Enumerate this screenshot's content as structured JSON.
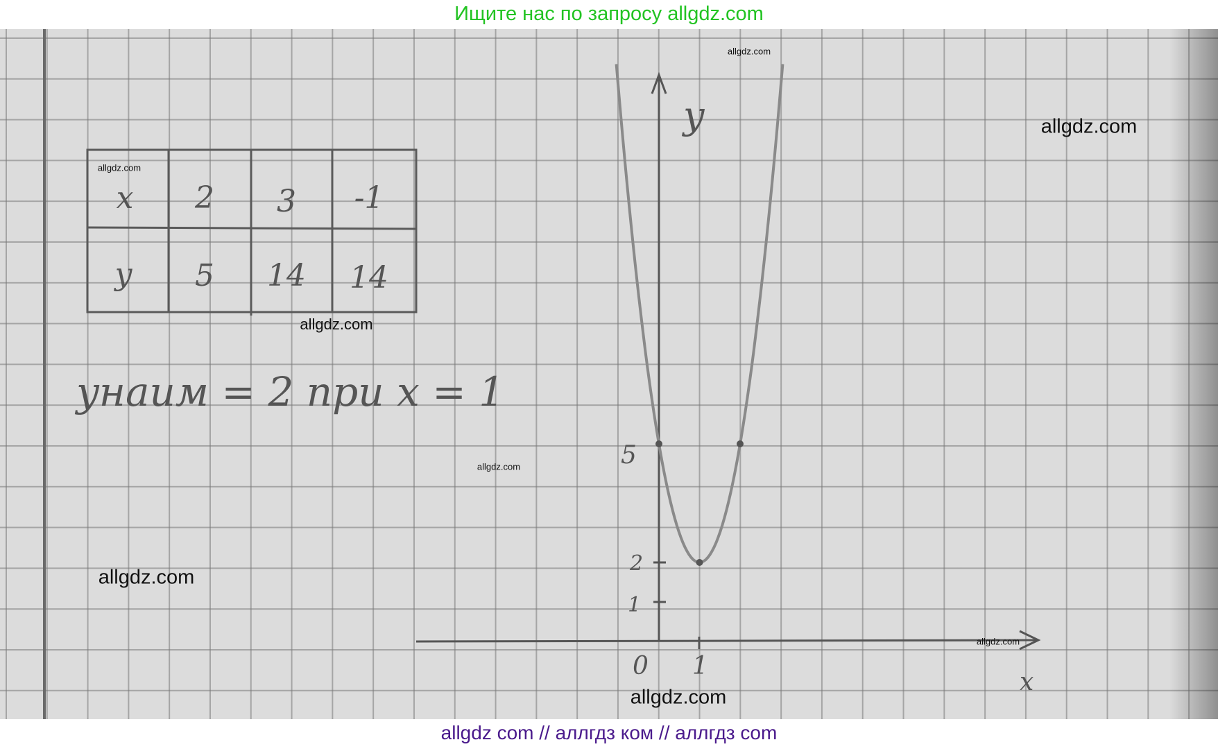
{
  "header": {
    "text": "Ищите нас по запросу allgdz.com"
  },
  "footer": {
    "text": "allgdz com  //  аллгдз ком  //  аллгдз com"
  },
  "watermarks": [
    "allgdz.com",
    "allgdz.com",
    "allgdz.com",
    "allgdz.com",
    "allgdz.com",
    "allgdz.com",
    "allgdz.com",
    "allgdz.com"
  ],
  "table": {
    "rows": [
      {
        "label": "x",
        "values": [
          "2",
          "3",
          "-1"
        ]
      },
      {
        "label": "y",
        "values": [
          "5",
          "14",
          "14"
        ]
      }
    ]
  },
  "answer": {
    "text": "yнаим = 2 при x = 1"
  },
  "graph": {
    "function": {
      "a": 3,
      "b": -6,
      "c": 5
    },
    "x_range": [
      -1,
      3
    ],
    "points": [
      {
        "x": 0,
        "y": 5
      },
      {
        "x": 1,
        "y": 2
      },
      {
        "x": 2,
        "y": 5
      }
    ],
    "axis_labels": {
      "x": "x",
      "y": "y"
    },
    "ticks": {
      "origin": "0",
      "x1": "1",
      "y1": "1",
      "y2": "2",
      "y5": "5"
    },
    "ink_color": "#555555"
  }
}
